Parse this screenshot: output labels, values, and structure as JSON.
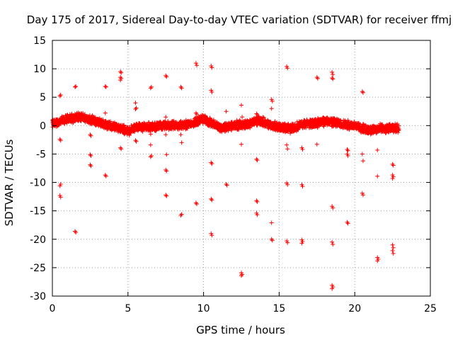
{
  "chart_data": {
    "type": "scatter",
    "title": "Day 175 of 2017, Sidereal Day-to-day VTEC variation (SDTVAR) for receiver ffmj",
    "xlabel": "GPS time / hours",
    "ylabel": "SDTVAR / TECUs",
    "xlim": [
      0,
      25
    ],
    "ylim": [
      -30,
      15
    ],
    "xticks": [
      0,
      5,
      10,
      15,
      20,
      25
    ],
    "yticks": [
      -30,
      -25,
      -20,
      -15,
      -10,
      -5,
      0,
      5,
      10,
      15
    ],
    "grid": true,
    "marker": "+",
    "series": [
      {
        "name": "SDTVAR",
        "color": "#ff0000",
        "band": {
          "x_range": [
            0,
            22.9
          ],
          "center": [
            [
              0,
              0.3
            ],
            [
              1.2,
              1.3
            ],
            [
              2.0,
              1.5
            ],
            [
              2.8,
              0.8
            ],
            [
              3.5,
              0.2
            ],
            [
              4.3,
              -0.3
            ],
            [
              5.0,
              -1.0
            ],
            [
              5.6,
              -0.2
            ],
            [
              6.5,
              -0.2
            ],
            [
              7.5,
              0.0
            ],
            [
              8.5,
              0.0
            ],
            [
              9.3,
              0.5
            ],
            [
              9.9,
              1.2
            ],
            [
              10.5,
              0.4
            ],
            [
              11.2,
              -0.4
            ],
            [
              12.0,
              0.0
            ],
            [
              13.0,
              0.3
            ],
            [
              13.6,
              1.0
            ],
            [
              14.3,
              0.2
            ],
            [
              15.0,
              -0.3
            ],
            [
              15.7,
              -0.5
            ],
            [
              16.5,
              0.2
            ],
            [
              17.5,
              0.5
            ],
            [
              18.3,
              0.8
            ],
            [
              19.0,
              0.3
            ],
            [
              20.0,
              0.0
            ],
            [
              20.8,
              -0.8
            ],
            [
              21.5,
              -0.5
            ],
            [
              22.9,
              -0.5
            ]
          ],
          "halfwidth": 0.9
        },
        "points": [
          [
            0.5,
            5.2
          ],
          [
            0.55,
            5.4
          ],
          [
            0.5,
            -2.4
          ],
          [
            0.55,
            -2.6
          ],
          [
            0.55,
            -10.3
          ],
          [
            0.5,
            -10.6
          ],
          [
            0.5,
            -12.3
          ],
          [
            0.55,
            -12.6
          ],
          [
            1.5,
            6.8
          ],
          [
            1.55,
            6.9
          ],
          [
            1.5,
            -18.6
          ],
          [
            1.55,
            -18.8
          ],
          [
            2.5,
            -1.6
          ],
          [
            2.55,
            -1.8
          ],
          [
            2.5,
            -5.1
          ],
          [
            2.55,
            -5.3
          ],
          [
            2.5,
            -6.9
          ],
          [
            2.55,
            -7.1
          ],
          [
            3.5,
            6.9
          ],
          [
            3.55,
            6.8
          ],
          [
            3.5,
            2.2
          ],
          [
            3.5,
            -8.7
          ],
          [
            3.55,
            -8.9
          ],
          [
            4.5,
            9.5
          ],
          [
            4.55,
            9.3
          ],
          [
            4.5,
            8.5
          ],
          [
            4.55,
            8.3
          ],
          [
            4.5,
            8.0
          ],
          [
            4.5,
            -3.9
          ],
          [
            4.55,
            -4.1
          ],
          [
            5.5,
            4.0
          ],
          [
            5.55,
            3.1
          ],
          [
            5.5,
            2.9
          ],
          [
            5.5,
            -2.6
          ],
          [
            5.55,
            -2.8
          ],
          [
            6.5,
            6.6
          ],
          [
            6.55,
            6.8
          ],
          [
            6.5,
            -1.5
          ],
          [
            6.5,
            -3.4
          ],
          [
            6.55,
            -5.3
          ],
          [
            6.5,
            -5.5
          ],
          [
            7.5,
            8.8
          ],
          [
            7.55,
            8.6
          ],
          [
            7.5,
            1.5
          ],
          [
            7.5,
            -1.6
          ],
          [
            7.55,
            -5.1
          ],
          [
            7.5,
            -7.8
          ],
          [
            7.55,
            -8.0
          ],
          [
            7.5,
            -12.2
          ],
          [
            7.55,
            -12.4
          ],
          [
            8.5,
            6.8
          ],
          [
            8.55,
            6.6
          ],
          [
            8.5,
            0.8
          ],
          [
            8.5,
            -1.6
          ],
          [
            8.55,
            -3.0
          ],
          [
            8.5,
            -15.8
          ],
          [
            8.55,
            -15.6
          ],
          [
            9.5,
            11.0
          ],
          [
            9.55,
            10.6
          ],
          [
            9.5,
            2.2
          ],
          [
            9.55,
            2.0
          ],
          [
            9.5,
            -13.6
          ],
          [
            9.55,
            -13.8
          ],
          [
            10.5,
            10.5
          ],
          [
            10.55,
            10.2
          ],
          [
            10.5,
            6.2
          ],
          [
            10.55,
            5.9
          ],
          [
            10.5,
            -6.5
          ],
          [
            10.55,
            -6.7
          ],
          [
            10.5,
            -12.9
          ],
          [
            10.55,
            -13.1
          ],
          [
            10.5,
            -19.0
          ],
          [
            10.55,
            -19.3
          ],
          [
            11.5,
            2.5
          ],
          [
            11.5,
            -10.3
          ],
          [
            11.55,
            -10.5
          ],
          [
            12.5,
            3.6
          ],
          [
            12.55,
            1.5
          ],
          [
            12.5,
            -3.3
          ],
          [
            12.5,
            -25.9
          ],
          [
            12.55,
            -26.2
          ],
          [
            12.5,
            -26.4
          ],
          [
            13.5,
            2.1
          ],
          [
            13.55,
            1.9
          ],
          [
            13.5,
            -5.9
          ],
          [
            13.55,
            -6.1
          ],
          [
            13.5,
            -13.2
          ],
          [
            13.55,
            -13.4
          ],
          [
            13.5,
            -15.4
          ],
          [
            13.55,
            -15.7
          ],
          [
            14.5,
            4.6
          ],
          [
            14.55,
            4.3
          ],
          [
            14.5,
            3.0
          ],
          [
            14.5,
            -17.1
          ],
          [
            14.5,
            -20.0
          ],
          [
            14.55,
            -20.2
          ],
          [
            15.5,
            10.4
          ],
          [
            15.55,
            10.1
          ],
          [
            15.5,
            -3.4
          ],
          [
            15.55,
            -4.1
          ],
          [
            15.5,
            -10.1
          ],
          [
            15.55,
            -10.4
          ],
          [
            15.5,
            -20.3
          ],
          [
            15.55,
            -20.6
          ],
          [
            16.5,
            -3.9
          ],
          [
            16.55,
            -4.2
          ],
          [
            16.5,
            -10.4
          ],
          [
            16.55,
            -10.7
          ],
          [
            16.5,
            -20.1
          ],
          [
            16.55,
            -20.4
          ],
          [
            16.5,
            -20.7
          ],
          [
            17.5,
            8.5
          ],
          [
            17.55,
            8.3
          ],
          [
            17.5,
            -3.3
          ],
          [
            18.5,
            9.4
          ],
          [
            18.55,
            9.0
          ],
          [
            18.5,
            8.4
          ],
          [
            18.55,
            8.2
          ],
          [
            18.5,
            -14.2
          ],
          [
            18.55,
            -14.5
          ],
          [
            18.5,
            -20.5
          ],
          [
            18.55,
            -20.9
          ],
          [
            18.5,
            -28.1
          ],
          [
            18.55,
            -28.4
          ],
          [
            18.5,
            -28.7
          ],
          [
            19.5,
            -4.2
          ],
          [
            19.55,
            -4.4
          ],
          [
            19.5,
            -5.0
          ],
          [
            19.55,
            -5.3
          ],
          [
            19.5,
            -17.0
          ],
          [
            19.55,
            -17.2
          ],
          [
            20.5,
            6.0
          ],
          [
            20.55,
            5.8
          ],
          [
            20.5,
            -5.0
          ],
          [
            20.55,
            -6.2
          ],
          [
            20.5,
            -11.9
          ],
          [
            20.55,
            -12.2
          ],
          [
            21.5,
            -4.3
          ],
          [
            21.5,
            -8.9
          ],
          [
            21.5,
            -23.2
          ],
          [
            21.55,
            -23.5
          ],
          [
            21.5,
            -23.8
          ],
          [
            22.5,
            -6.8
          ],
          [
            22.55,
            -7.0
          ],
          [
            22.5,
            -8.7
          ],
          [
            22.55,
            -9.0
          ],
          [
            22.5,
            -9.3
          ],
          [
            22.5,
            -21.0
          ],
          [
            22.55,
            -21.5
          ],
          [
            22.5,
            -22.0
          ],
          [
            22.55,
            -22.5
          ]
        ]
      }
    ]
  }
}
